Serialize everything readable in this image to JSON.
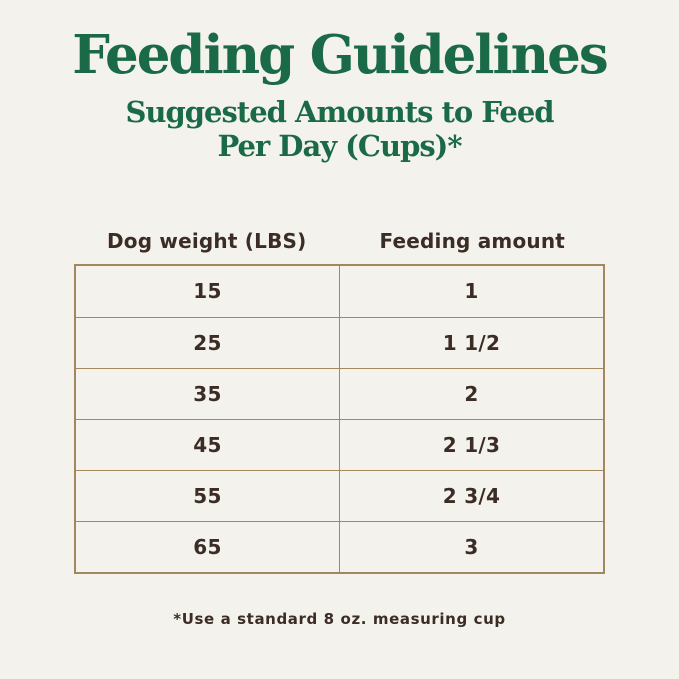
{
  "colors": {
    "background": "#f4f2ec",
    "heading_green": "#1a6a47",
    "table_border_tan": "#a3875e",
    "text_dark_brown": "#3c2c26"
  },
  "header": {
    "title": "Feeding Guidelines",
    "subtitle_line1": "Suggested Amounts to Feed",
    "subtitle_line2": "Per Day (Cups)*"
  },
  "table": {
    "columns": [
      "Dog weight (LBS)",
      "Feeding amount"
    ],
    "rows": [
      [
        "15",
        "1"
      ],
      [
        "25",
        "1 1/2"
      ],
      [
        "35",
        "2"
      ],
      [
        "45",
        "2 1/3"
      ],
      [
        "55",
        "2 3/4"
      ],
      [
        "65",
        "3"
      ]
    ]
  },
  "footnote": "*Use a standard 8 oz. measuring cup"
}
